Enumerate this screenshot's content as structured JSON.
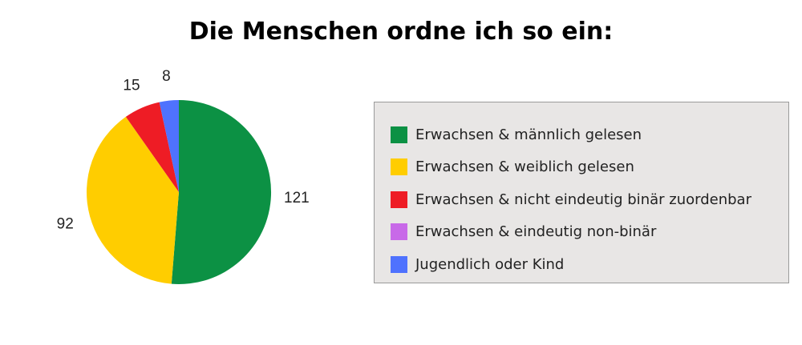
{
  "chart_data": {
    "type": "pie",
    "title": "Die Menschen ordne ich so ein:",
    "legend_position": "right",
    "slices": [
      {
        "name": "Erwachsen & männlich gelesen",
        "value": 121,
        "label": "121",
        "color": "#0c9144"
      },
      {
        "name": "Erwachsen & weiblich gelesen",
        "value": 92,
        "label": "92",
        "color": "#ffcd00"
      },
      {
        "name": "Erwachsen & nicht eindeutig binär zuordenbar",
        "value": 15,
        "label": "15",
        "color": "#ee1c25"
      },
      {
        "name": "Erwachsen & eindeutig non-binär",
        "value": 0,
        "label": "",
        "color": "#c869e8"
      },
      {
        "name": "Jugendlich oder Kind",
        "value": 8,
        "label": "8",
        "color": "#4f72fe"
      }
    ]
  }
}
